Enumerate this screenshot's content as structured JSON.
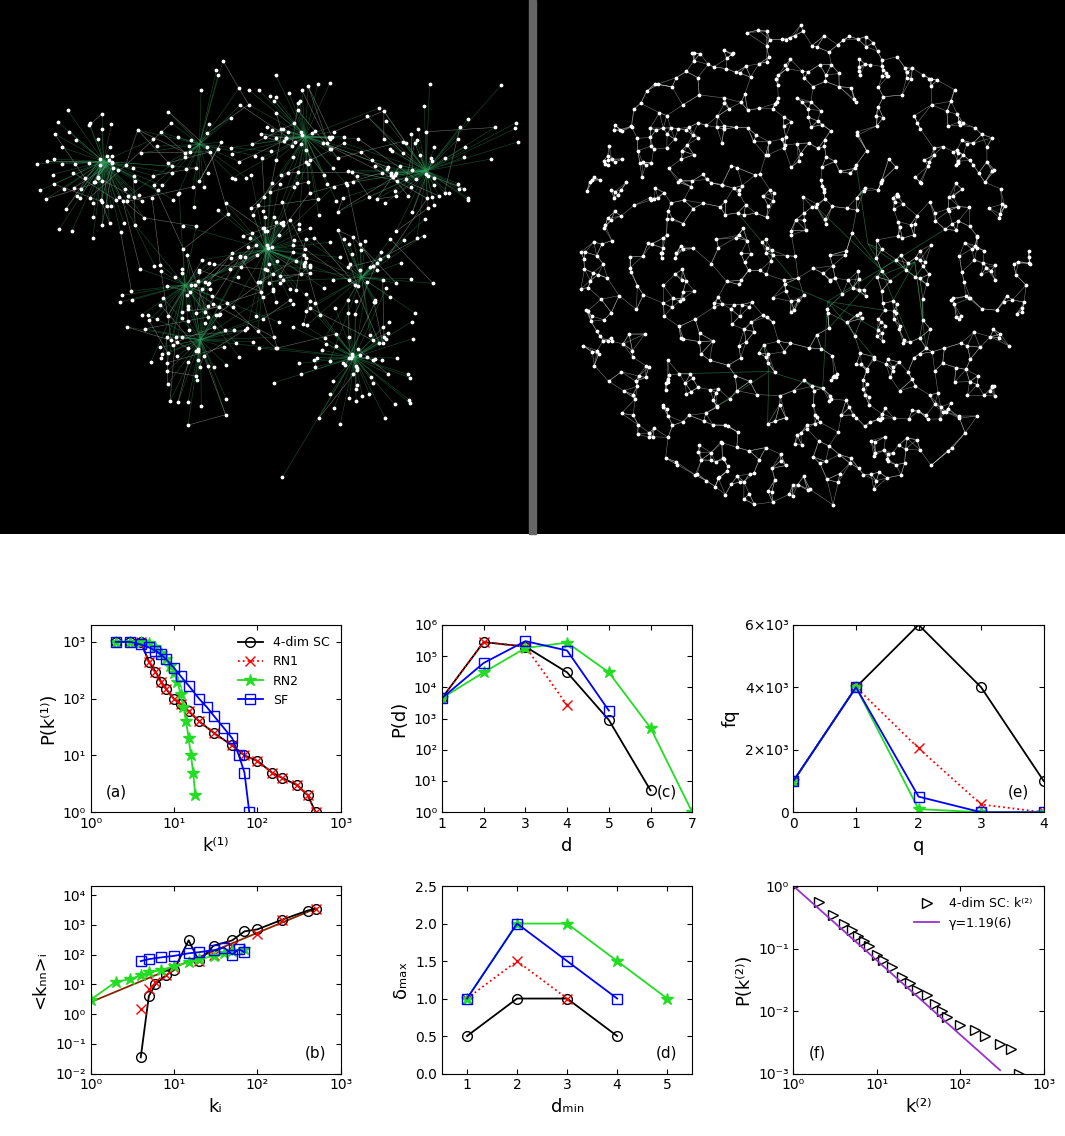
{
  "chart_data": [
    {
      "type": "line",
      "x_label": "k⁽¹⁾",
      "y_label": "P(k⁽¹⁾)",
      "log": true,
      "annotations": [
        "(a)"
      ],
      "legend": "upper right",
      "xlim": [
        1,
        1000
      ],
      "ylim": [
        1,
        2000
      ],
      "xticks": [
        {
          "value": 1,
          "label": "10⁰"
        },
        {
          "value": 10,
          "label": "10¹"
        },
        {
          "value": 100,
          "label": "10²"
        },
        {
          "value": 1000,
          "label": "10³"
        }
      ],
      "yticks": [
        {
          "value": 1,
          "label": "10⁰"
        },
        {
          "value": 10,
          "label": "10¹"
        },
        {
          "value": 100,
          "label": "10²"
        },
        {
          "value": 1000,
          "label": "10³"
        }
      ],
      "series": [
        {
          "name": "4-dim SC",
          "color": "#000000",
          "marker": "circle",
          "line_style": "solid",
          "x": [
            2,
            3,
            4,
            5,
            6,
            7,
            8,
            10,
            12,
            15,
            20,
            30,
            50,
            70,
            100,
            150,
            200,
            300,
            400,
            500
          ],
          "values": [
            1000,
            1000,
            1000,
            450,
            300,
            200,
            150,
            100,
            80,
            60,
            40,
            25,
            15,
            10,
            8,
            5,
            4,
            3,
            2,
            1
          ]
        },
        {
          "name": "RN1",
          "color": "#ff0000",
          "marker": "x",
          "line_style": "dotted",
          "x": [
            4,
            5,
            6,
            7,
            8,
            10,
            12,
            15,
            20,
            30,
            50,
            70,
            100,
            150,
            200,
            300,
            400,
            500
          ],
          "values": [
            1000,
            450,
            300,
            200,
            150,
            100,
            80,
            60,
            40,
            25,
            15,
            10,
            8,
            5,
            4,
            3,
            2,
            1
          ]
        },
        {
          "name": "RN2",
          "color": "#22dd22",
          "marker": "star",
          "line_style": "solid",
          "x": [
            2,
            3,
            4,
            5,
            6,
            7,
            8,
            9,
            10,
            11,
            12,
            13,
            14,
            15,
            16,
            17,
            18
          ],
          "values": [
            1000,
            1000,
            1000,
            950,
            800,
            650,
            500,
            380,
            280,
            200,
            120,
            70,
            40,
            20,
            10,
            5,
            2
          ]
        },
        {
          "name": "SF",
          "color": "#0000ff",
          "marker": "square",
          "line_style": "solid",
          "x": [
            2,
            3,
            4,
            5,
            6,
            7,
            8,
            10,
            12,
            15,
            20,
            25,
            30,
            40,
            50,
            60,
            70,
            80
          ],
          "values": [
            1000,
            1000,
            900,
            800,
            700,
            600,
            500,
            350,
            250,
            170,
            100,
            70,
            50,
            30,
            20,
            10,
            5,
            1
          ]
        }
      ]
    },
    {
      "type": "line",
      "x_label": "kᵢ",
      "y_label": "<kₙₙ>ᵢ",
      "log": true,
      "annotations": [
        "(b)"
      ],
      "xlim": [
        1,
        1000
      ],
      "ylim": [
        0.01,
        20000
      ],
      "xticks": [
        {
          "value": 1,
          "label": "10⁰"
        },
        {
          "value": 10,
          "label": "10¹"
        },
        {
          "value": 100,
          "label": "10²"
        },
        {
          "value": 1000,
          "label": "10³"
        }
      ],
      "yticks": [
        {
          "value": 0.01,
          "label": "10⁻²"
        },
        {
          "value": 0.1,
          "label": "10⁻¹"
        },
        {
          "value": 1,
          "label": "10⁰"
        },
        {
          "value": 10,
          "label": "10¹"
        },
        {
          "value": 100,
          "label": "10²"
        },
        {
          "value": 1000,
          "label": "10³"
        },
        {
          "value": 10000,
          "label": "10⁴"
        }
      ],
      "series": [
        {
          "color": "#8b2500",
          "marker": "none",
          "line_style": "solid",
          "x": [
            1,
            500
          ],
          "values": [
            2.5,
            3500
          ]
        },
        {
          "color": "#000000",
          "marker": "circle",
          "line_style": "solid",
          "x": [
            4,
            5,
            6,
            8,
            10,
            15,
            20,
            30,
            50,
            70,
            100,
            200,
            400,
            500
          ],
          "values": [
            0.035,
            4,
            10,
            20,
            30,
            300,
            60,
            200,
            300,
            600,
            700,
            1500,
            3000,
            3500
          ]
        },
        {
          "color": "#ff0000",
          "marker": "x",
          "type": "scatter",
          "x": [
            4,
            5,
            6,
            8,
            10,
            20,
            30,
            50,
            100,
            200,
            500
          ],
          "values": [
            1.5,
            7,
            12,
            20,
            35,
            60,
            100,
            200,
            500,
            1500,
            3500
          ]
        },
        {
          "color": "#22dd22",
          "marker": "star",
          "line_style": "solid",
          "x": [
            1,
            2,
            3,
            4,
            5,
            7,
            10,
            15,
            20,
            30,
            40,
            50,
            70
          ],
          "values": [
            3,
            12,
            15,
            20,
            25,
            30,
            40,
            55,
            70,
            90,
            110,
            130,
            150
          ]
        },
        {
          "color": "#0000ff",
          "marker": "square",
          "line_style": "solid",
          "x": [
            4,
            5,
            7,
            10,
            15,
            20,
            30,
            40,
            50,
            60,
            70
          ],
          "values": [
            60,
            70,
            80,
            90,
            110,
            120,
            140,
            170,
            100,
            150,
            120
          ]
        }
      ]
    },
    {
      "type": "line",
      "x_label": "d",
      "y_label": "P(d)",
      "log": "y",
      "annotations": [
        "(c)"
      ],
      "xlim": [
        1,
        7
      ],
      "ylim": [
        1,
        1000000
      ],
      "xticks": [
        1,
        2,
        3,
        4,
        5,
        6,
        7
      ],
      "yticks": [
        {
          "value": 1,
          "label": "10⁰"
        },
        {
          "value": 10,
          "label": "10¹"
        },
        {
          "value": 100,
          "label": "10²"
        },
        {
          "value": 1000,
          "label": "10³"
        },
        {
          "value": 10000,
          "label": "10⁴"
        },
        {
          "value": 100000,
          "label": "10⁵"
        },
        {
          "value": 1000000,
          "label": "10⁶"
        }
      ],
      "series": [
        {
          "color": "#000000",
          "marker": "circle",
          "line_style": "solid",
          "x": [
            1,
            2,
            3,
            4,
            5,
            6
          ],
          "values": [
            4500,
            280000,
            200000,
            30000,
            900,
            5
          ]
        },
        {
          "color": "#ff0000",
          "marker": "x",
          "line_style": "dotted",
          "x": [
            1,
            2,
            3,
            4
          ],
          "values": [
            4500,
            280000,
            200000,
            2700
          ]
        },
        {
          "color": "#22dd22",
          "marker": "star",
          "line_style": "solid",
          "x": [
            1,
            2,
            3,
            4,
            5,
            6,
            7
          ],
          "values": [
            4500,
            30000,
            180000,
            270000,
            30000,
            500,
            1
          ]
        },
        {
          "color": "#0000ff",
          "marker": "square",
          "line_style": "solid",
          "x": [
            1,
            2,
            3,
            4,
            5
          ],
          "values": [
            4500,
            60000,
            300000,
            150000,
            1800
          ]
        }
      ]
    },
    {
      "type": "line",
      "x_label": "dₘᵢₙ",
      "y_label": "δₘₐₓ",
      "annotations": [
        "(d)"
      ],
      "xlim": [
        0.5,
        5.5
      ],
      "ylim": [
        0,
        2.5
      ],
      "xticks": [
        1,
        2,
        3,
        4,
        5
      ],
      "yticks": [
        {
          "value": 0,
          "label": "0.0"
        },
        {
          "value": 0.5,
          "label": "0.5"
        },
        {
          "value": 1,
          "label": "1.0"
        },
        {
          "value": 1.5,
          "label": "1.5"
        },
        {
          "value": 2,
          "label": "2.0"
        },
        {
          "value": 2.5,
          "label": "2.5"
        }
      ],
      "series": [
        {
          "color": "#000000",
          "marker": "circle",
          "line_style": "solid",
          "x": [
            1,
            2,
            3,
            4
          ],
          "values": [
            0.5,
            1,
            1,
            0.5
          ]
        },
        {
          "color": "#ff0000",
          "marker": "x",
          "line_style": "dotted",
          "x": [
            1,
            2,
            3
          ],
          "values": [
            1,
            1.5,
            1
          ]
        },
        {
          "color": "#22dd22",
          "marker": "star",
          "line_style": "solid",
          "x": [
            1,
            2,
            3,
            4,
            5
          ],
          "values": [
            1,
            2,
            2,
            1.5,
            1
          ]
        },
        {
          "color": "#0000ff",
          "marker": "square",
          "line_style": "solid",
          "x": [
            1,
            2,
            3,
            4
          ],
          "values": [
            1,
            2,
            1.5,
            1
          ]
        }
      ]
    },
    {
      "type": "line",
      "x_label": "q",
      "y_label": "fq",
      "annotations": [
        "(e)"
      ],
      "xlim": [
        0,
        4
      ],
      "ylim": [
        0,
        6000
      ],
      "xticks": [
        0,
        1,
        2,
        3,
        4
      ],
      "yticks": [
        0,
        {
          "value": 2000,
          "label": "2×10³"
        },
        {
          "value": 4000,
          "label": "4×10³"
        },
        {
          "value": 6000,
          "label": "6×10³"
        }
      ],
      "series": [
        {
          "color": "#000000",
          "marker": "circle",
          "line_style": "solid",
          "x": [
            0,
            1,
            2,
            3,
            4
          ],
          "values": [
            1000,
            4000,
            6000,
            4000,
            1000
          ]
        },
        {
          "color": "#ff0000",
          "marker": "x",
          "line_style": "dotted",
          "x": [
            0,
            1,
            2,
            3,
            4
          ],
          "values": [
            1000,
            4000,
            2050,
            250,
            0
          ]
        },
        {
          "color": "#22dd22",
          "marker": "star",
          "line_style": "solid",
          "x": [
            0,
            1,
            2,
            3,
            4
          ],
          "values": [
            1000,
            4000,
            100,
            0,
            0
          ]
        },
        {
          "color": "#0000ff",
          "marker": "square",
          "line_style": "solid",
          "x": [
            0,
            1,
            2,
            3,
            4
          ],
          "values": [
            1000,
            4000,
            500,
            0,
            0
          ]
        }
      ]
    },
    {
      "type": "line",
      "x_label": "k⁽²⁾",
      "y_label": "P(k⁽²⁾)",
      "log": true,
      "annotations": [
        "(f)"
      ],
      "legend": "upper right",
      "xlim": [
        1,
        1000
      ],
      "ylim": [
        0.001,
        1
      ],
      "xticks": [
        {
          "value": 1,
          "label": "10⁰"
        },
        {
          "value": 10,
          "label": "10¹"
        },
        {
          "value": 100,
          "label": "10²"
        },
        {
          "value": 1000,
          "label": "10³"
        }
      ],
      "yticks": [
        {
          "value": 0.001,
          "label": "10⁻³"
        },
        {
          "value": 0.01,
          "label": "10⁻²"
        },
        {
          "value": 0.1,
          "label": "10⁻¹"
        },
        {
          "value": 1,
          "label": "10⁰"
        }
      ],
      "series": [
        {
          "name": "4-dim SC: k⁽²⁾",
          "color": "#000000",
          "marker": "triangle_right",
          "type": "scatter",
          "x": [
            1,
            2,
            3,
            4,
            5,
            6,
            7,
            8,
            10,
            12,
            15,
            20,
            25,
            30,
            40,
            50,
            60,
            70,
            100,
            150,
            200,
            300,
            400,
            500
          ],
          "values": [
            1,
            0.55,
            0.35,
            0.25,
            0.2,
            0.16,
            0.13,
            0.11,
            0.08,
            0.065,
            0.05,
            0.035,
            0.028,
            0.022,
            0.018,
            0.013,
            0.01,
            0.008,
            0.006,
            0.005,
            0.004,
            0.003,
            0.0025,
            0.001
          ]
        },
        {
          "name": "γ=1.19(6)",
          "color": "#9932cc",
          "marker": "none",
          "line_style": "solid",
          "x": [
            1,
            300
          ],
          "values": [
            1,
            0.00113
          ]
        }
      ]
    }
  ]
}
